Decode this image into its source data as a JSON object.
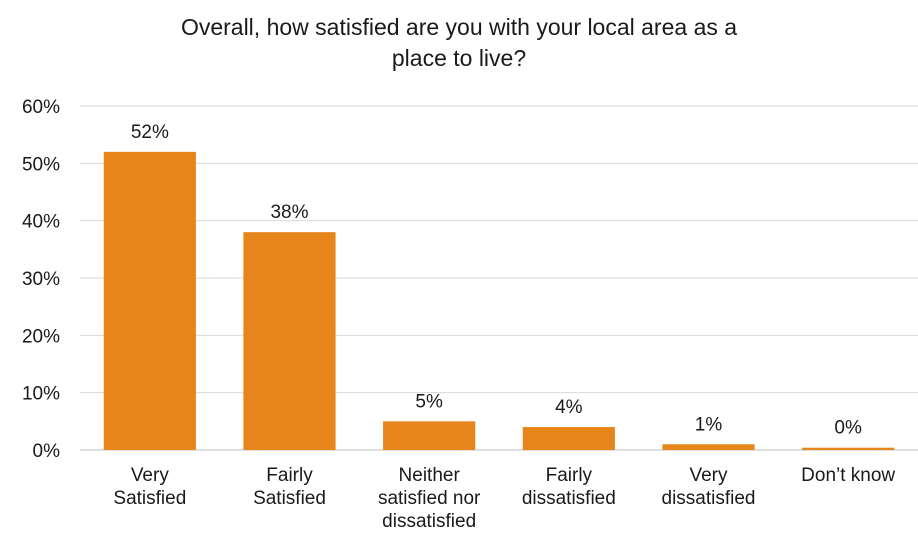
{
  "chart_data": {
    "type": "bar",
    "title_line1": "Overall, how satisfied are you with your local area as a",
    "title_line2": "place to live?",
    "categories": [
      [
        "Very",
        "Satisfied"
      ],
      [
        "Fairly",
        "Satisfied"
      ],
      [
        "Neither",
        "satisfied nor",
        "dissatisfied"
      ],
      [
        "Fairly",
        "dissatisfied"
      ],
      [
        "Very",
        "dissatisfied"
      ],
      [
        "Don’t know"
      ]
    ],
    "values": [
      52,
      38,
      5,
      4,
      1,
      0.4
    ],
    "data_labels": [
      "52%",
      "38%",
      "5%",
      "4%",
      "1%",
      "0%"
    ],
    "ylim": [
      0,
      60
    ],
    "yticks": [
      0,
      10,
      20,
      30,
      40,
      50,
      60
    ],
    "ytick_labels": [
      "0%",
      "10%",
      "20%",
      "30%",
      "40%",
      "50%",
      "60%"
    ],
    "xlabel": "",
    "ylabel": "",
    "grid": true,
    "bar_color": "#E6851A",
    "grid_color": "#d9d9d9"
  }
}
